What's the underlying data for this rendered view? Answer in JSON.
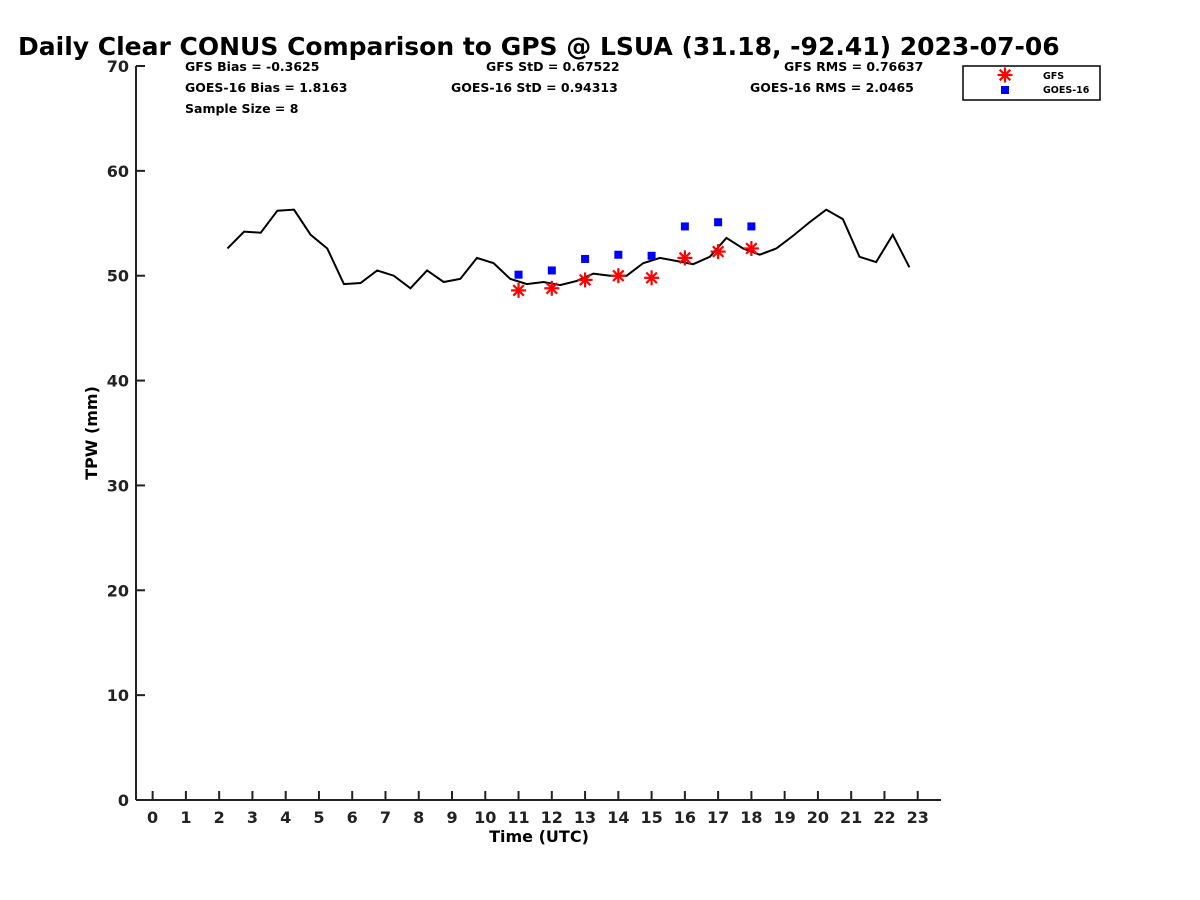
{
  "chart_data": {
    "type": "line",
    "title": "Daily Clear CONUS Comparison to GPS @ LSUA (31.18, -92.41) 2023-07-06",
    "xlabel": "Time (UTC)",
    "ylabel": "TPW (mm)",
    "xlim": [
      -0.5,
      23.7
    ],
    "ylim": [
      0,
      70
    ],
    "x_ticks": [
      "0",
      "1",
      "2",
      "3",
      "4",
      "5",
      "6",
      "7",
      "8",
      "9",
      "10",
      "11",
      "12",
      "13",
      "14",
      "15",
      "16",
      "17",
      "18",
      "19",
      "20",
      "21",
      "22",
      "23"
    ],
    "y_ticks": [
      "0",
      "10",
      "20",
      "30",
      "40",
      "50",
      "60",
      "70"
    ],
    "grid": false,
    "legend_position": "top-right",
    "stats": {
      "gfs_bias": "GFS Bias = -0.3625",
      "goes_bias": "GOES-16 Bias = 1.8163",
      "sample_size": "Sample Size = 8",
      "gfs_std": "GFS StD = 0.67522",
      "goes_std": "GOES-16 StD = 0.94313",
      "gfs_rms": "GFS RMS = 0.76637",
      "goes_rms": "GOES-16 RMS = 2.0465"
    },
    "series": [
      {
        "name": "",
        "role": "GPS line",
        "color": "#000000",
        "x": [
          2.25,
          2.75,
          3.25,
          3.75,
          4.25,
          4.75,
          5.25,
          5.75,
          6.25,
          6.75,
          7.25,
          7.75,
          8.25,
          8.75,
          9.25,
          9.75,
          10.25,
          10.75,
          11.25,
          11.75,
          12.25,
          12.75,
          13.25,
          13.75,
          14.25,
          14.75,
          15.25,
          15.75,
          16.25,
          16.75,
          17.25,
          17.75,
          18.25,
          18.75,
          19.25,
          19.75,
          20.25,
          20.75,
          21.25,
          21.75,
          22.25,
          22.75
        ],
        "y": [
          52.6,
          54.2,
          54.1,
          56.2,
          56.3,
          53.9,
          52.6,
          49.2,
          49.3,
          50.5,
          50.0,
          48.8,
          50.5,
          49.4,
          49.7,
          51.7,
          51.2,
          49.7,
          49.2,
          49.4,
          49.1,
          49.5,
          50.2,
          50.0,
          50.0,
          51.2,
          51.7,
          51.4,
          51.1,
          51.8,
          53.6,
          52.6,
          52.0,
          52.6,
          53.8,
          55.1,
          56.3,
          55.4,
          51.8,
          51.3,
          53.9,
          50.8
        ]
      },
      {
        "name": "GFS",
        "color": "#ff0000",
        "marker": "asterisk",
        "x": [
          11,
          12,
          13,
          14,
          15,
          16,
          17,
          18
        ],
        "y": [
          48.6,
          48.8,
          49.6,
          50.0,
          49.8,
          51.7,
          52.3,
          52.6
        ]
      },
      {
        "name": "GOES-16",
        "color": "#0000ff",
        "marker": "square",
        "x": [
          11,
          12,
          13,
          14,
          15,
          16,
          17,
          18
        ],
        "y": [
          50.1,
          50.5,
          51.6,
          52.0,
          51.9,
          54.7,
          55.1,
          54.7
        ]
      }
    ]
  }
}
